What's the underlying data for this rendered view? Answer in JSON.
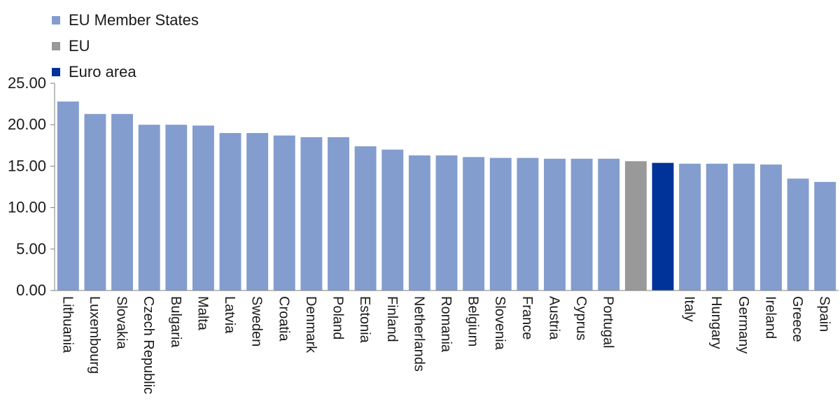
{
  "chart_data": {
    "type": "bar",
    "title": "",
    "xlabel": "",
    "ylabel": "",
    "ylim": [
      0,
      25
    ],
    "yticks": [
      "0.00",
      "5.00",
      "10.00",
      "15.00",
      "20.00",
      "25.00"
    ],
    "grid": false,
    "legend_position": "top-left",
    "legend": [
      {
        "name": "EU Member States",
        "color": "#849dcf"
      },
      {
        "name": "EU",
        "color": "#999999"
      },
      {
        "name": "Euro area",
        "color": "#003399"
      }
    ],
    "categories": [
      "Lithuania",
      "Luxembourg",
      "Slovakia",
      "Czech Republic",
      "Bulgaria",
      "Malta",
      "Latvia",
      "Sweden",
      "Croatia",
      "Denmark",
      "Poland",
      "Estonia",
      "Finland",
      "Netherlands",
      "Romania",
      "Belgium",
      "Slovenia",
      "France",
      "Austria",
      "Cyprus",
      "Portugal",
      "",
      "",
      "Italy",
      "Hungary",
      "Germany",
      "Ireland",
      "Greece",
      "Spain"
    ],
    "values": [
      22.8,
      21.3,
      21.3,
      20.0,
      20.0,
      19.9,
      19.0,
      19.0,
      18.7,
      18.5,
      18.5,
      17.4,
      17.0,
      16.3,
      16.3,
      16.1,
      16.0,
      16.0,
      15.9,
      15.9,
      15.9,
      15.6,
      15.4,
      15.3,
      15.3,
      15.3,
      15.2,
      13.5,
      13.1
    ],
    "groups": [
      "EU Member States",
      "EU Member States",
      "EU Member States",
      "EU Member States",
      "EU Member States",
      "EU Member States",
      "EU Member States",
      "EU Member States",
      "EU Member States",
      "EU Member States",
      "EU Member States",
      "EU Member States",
      "EU Member States",
      "EU Member States",
      "EU Member States",
      "EU Member States",
      "EU Member States",
      "EU Member States",
      "EU Member States",
      "EU Member States",
      "EU Member States",
      "EU",
      "Euro area",
      "EU Member States",
      "EU Member States",
      "EU Member States",
      "EU Member States",
      "EU Member States",
      "EU Member States"
    ]
  }
}
